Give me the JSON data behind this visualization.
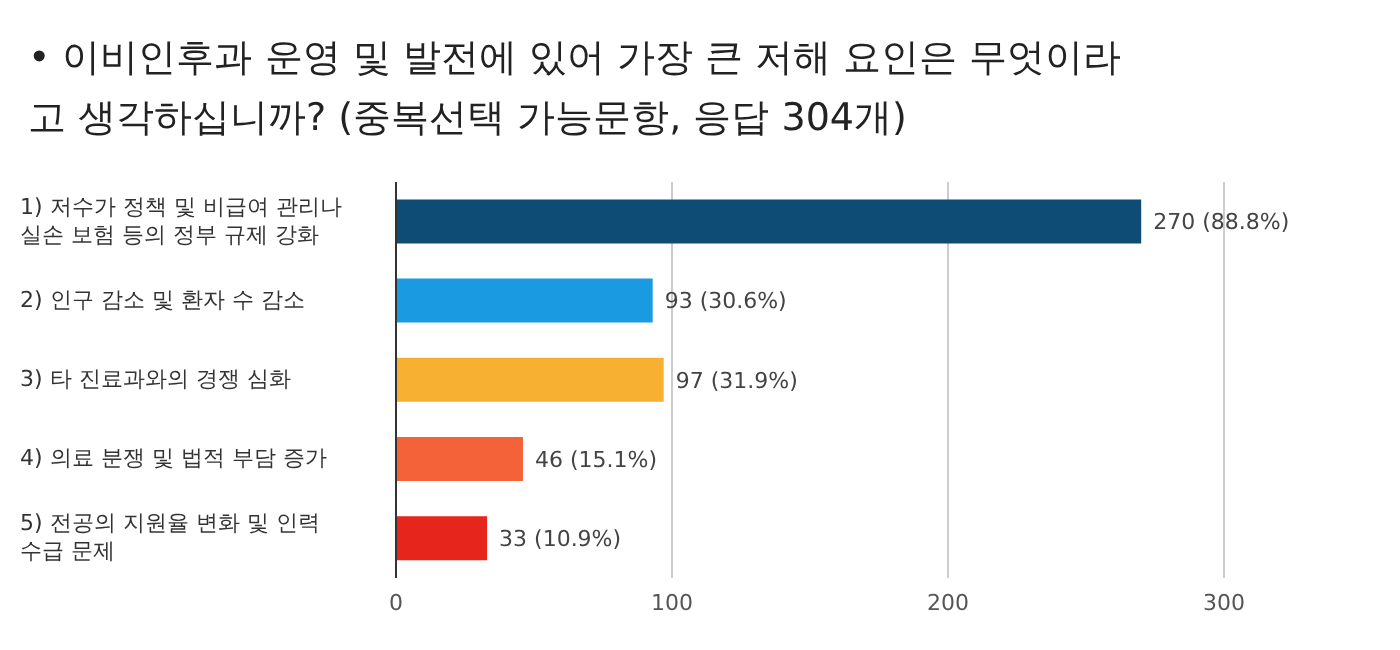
{
  "chart_data": {
    "type": "bar",
    "orientation": "horizontal",
    "title": "• 이비인후과 운영 및 발전에 있어 가장 큰 저해 요인은 무엇이라고 생각하십니까? (중복선택 가능문항, 응답 304개)",
    "categories": [
      "1) 저수가 정책 및 비급여 관리나 실손 보험 등의 정부 규제 강화",
      "2) 인구 감소 및 환자 수 감소",
      "3) 타 진료과와의 경쟁 심화",
      "4) 의료 분쟁 및 법적 부담 증가",
      "5) 전공의 지원율 변화 및 인력 수급 문제"
    ],
    "values": [
      270,
      93,
      97,
      46,
      33
    ],
    "colors": [
      "#0f4c75",
      "#1a9ae0",
      "#f7b032",
      "#f4623a",
      "#e6261c"
    ],
    "value_labels": [
      "270 (88.8%)",
      "93 (30.6%)",
      "97 (31.9%)",
      "46 (15.1%)",
      "33 (10.9%)"
    ],
    "xlim": [
      0,
      300
    ],
    "xticks": [
      0,
      100,
      200,
      300
    ],
    "grid": "x",
    "legend": false
  }
}
